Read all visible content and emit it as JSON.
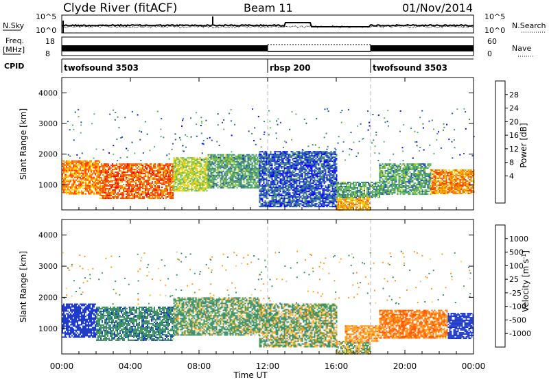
{
  "header": {
    "title": "Clyde River (fitACF)",
    "beam": "Beam 11",
    "date": "01/Nov/2014"
  },
  "noise_panel": {
    "left_label": "N.Sky",
    "left_ticks": [
      "10^5",
      "10^0"
    ],
    "right_label": "N.Search",
    "right_ticks": [
      "10^5",
      "10^0"
    ]
  },
  "freq_panel": {
    "left_label_1": "Freq.",
    "left_label_2": "[MHz]",
    "left_ticks": [
      "18",
      "8"
    ],
    "right_label": "Nave",
    "right_ticks": [
      "60",
      "0"
    ]
  },
  "cpid_panel": {
    "label": "CPID",
    "segments": [
      {
        "name": "twofsound 3503",
        "start_hour": 0,
        "end_hour": 12
      },
      {
        "name": "rbsp 200",
        "start_hour": 12,
        "end_hour": 18
      },
      {
        "name": "twofsound 3503",
        "start_hour": 18,
        "end_hour": 24
      }
    ]
  },
  "x_axis": {
    "label": "Time UT",
    "ticks": [
      "00:00",
      "04:00",
      "08:00",
      "12:00",
      "16:00",
      "20:00",
      "00:00"
    ],
    "range_hours": [
      0,
      24
    ]
  },
  "power_panel": {
    "ylabel": "Slant Range [km]",
    "yticks": [
      "1000",
      "2000",
      "3000",
      "4000"
    ],
    "colorbar_label": "Power [dB]",
    "colorbar_ticks": [
      "4",
      "8",
      "12",
      "16",
      "20",
      "24",
      "28"
    ],
    "colors": [
      "#0000ff",
      "#1f4fb8",
      "#3d8a6e",
      "#5cb85c",
      "#b0d020",
      "#ffcc00",
      "#ff8000",
      "#ff4000",
      "#ff0000"
    ]
  },
  "velocity_panel": {
    "ylabel": "Slant Range [km]",
    "yticks": [
      "1000",
      "2000",
      "3000",
      "4000"
    ],
    "colorbar_label": "Velocity [m s-1]",
    "colorbar_label_main": "Velocity [m s",
    "colorbar_label_sup": "-1",
    "colorbar_label_end": "]",
    "colorbar_ticks": [
      "1000",
      "500",
      "100",
      "25",
      "-25",
      "-100",
      "-500",
      "-1000"
    ],
    "colors": [
      "#1f3cc8",
      "#2f6fb0",
      "#3a8f6e",
      "#4aa84a",
      "#c8c8c8",
      "#ffd24a",
      "#ff9a1a",
      "#ff5a00",
      "#ff0000"
    ]
  },
  "chart_data": {
    "type": "heatmap",
    "title": "Clyde River (fitACF)",
    "xlabel": "Time UT",
    "ylabel": "Slant Range [km]",
    "xlim_hours": [
      0,
      24
    ],
    "ylim_km": [
      180,
      4500
    ],
    "vertical_markers_hours": [
      12,
      18
    ],
    "power_regions": [
      {
        "t0": 0.0,
        "t1": 2.2,
        "r0": 700,
        "r1": 1800,
        "power_db": 28
      },
      {
        "t0": 2.2,
        "t1": 6.5,
        "r0": 550,
        "r1": 1700,
        "power_db": 30
      },
      {
        "t0": 6.5,
        "t1": 8.5,
        "r0": 800,
        "r1": 1900,
        "power_db": 20
      },
      {
        "t0": 8.5,
        "t1": 11.5,
        "r0": 900,
        "r1": 2000,
        "power_db": 14
      },
      {
        "t0": 11.5,
        "t1": 16.0,
        "r0": 300,
        "r1": 2100,
        "power_db": 8
      },
      {
        "t0": 16.0,
        "t1": 18.0,
        "r0": 180,
        "r1": 600,
        "power_db": 26
      },
      {
        "t0": 16.0,
        "t1": 18.5,
        "r0": 600,
        "r1": 1100,
        "power_db": 14
      },
      {
        "t0": 18.5,
        "t1": 21.5,
        "r0": 700,
        "r1": 1700,
        "power_db": 14
      },
      {
        "t0": 21.5,
        "t1": 24.0,
        "r0": 700,
        "r1": 1500,
        "power_db": 28
      }
    ],
    "velocity_regions": [
      {
        "t0": 0.0,
        "t1": 2.0,
        "r0": 700,
        "r1": 1800,
        "velocity": 1000
      },
      {
        "t0": 2.0,
        "t1": 6.5,
        "r0": 600,
        "r1": 1700,
        "velocity": 300
      },
      {
        "t0": 6.5,
        "t1": 11.5,
        "r0": 800,
        "r1": 2000,
        "velocity": 150
      },
      {
        "t0": 11.5,
        "t1": 16.0,
        "r0": 400,
        "r1": 1800,
        "velocity": 80
      },
      {
        "t0": 16.0,
        "t1": 18.0,
        "r0": 180,
        "r1": 600,
        "velocity": 0
      },
      {
        "t0": 16.5,
        "t1": 18.5,
        "r0": 600,
        "r1": 1100,
        "velocity": -300
      },
      {
        "t0": 18.5,
        "t1": 22.5,
        "r0": 700,
        "r1": 1600,
        "velocity": -500
      },
      {
        "t0": 22.5,
        "t1": 24.0,
        "r0": 700,
        "r1": 1500,
        "velocity": 800
      }
    ]
  }
}
